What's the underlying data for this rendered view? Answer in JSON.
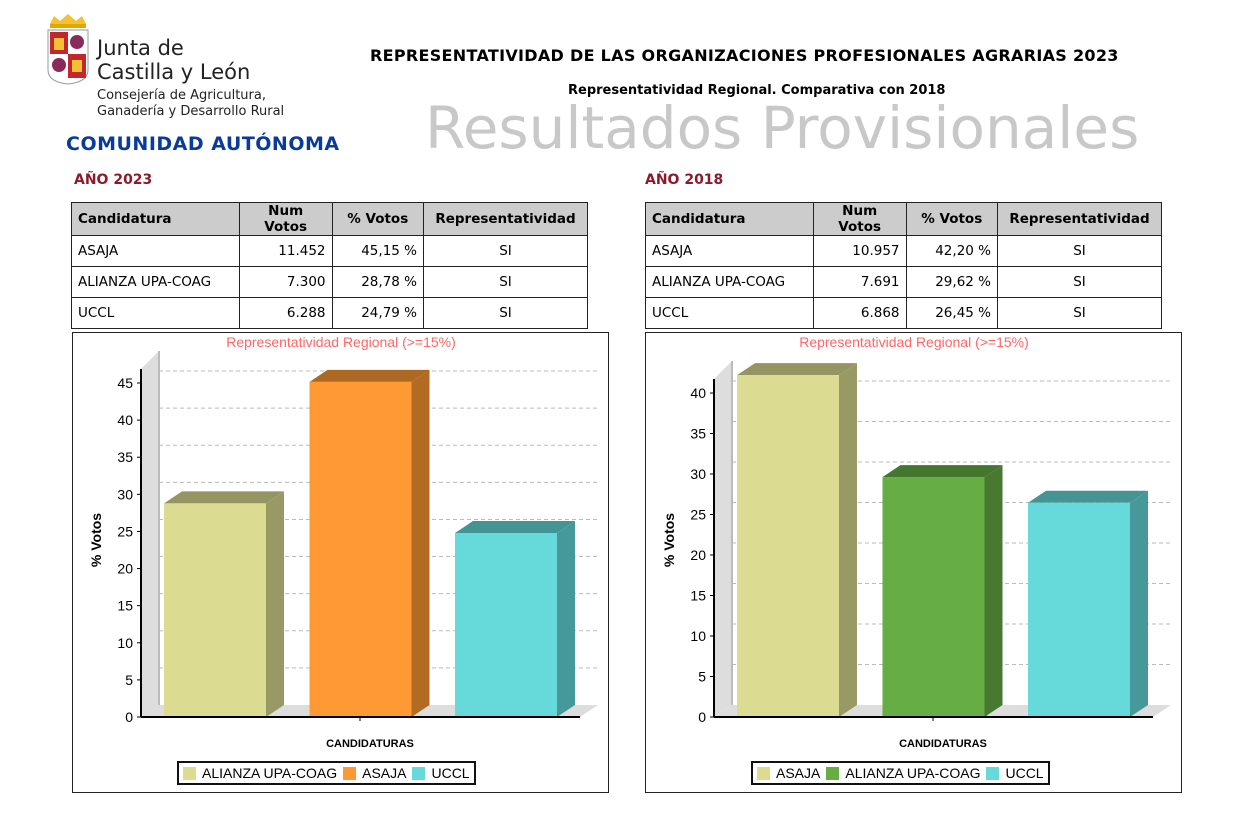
{
  "header": {
    "logo_title_line1": "Junta de",
    "logo_title_line2": "Castilla y León",
    "logo_sub_line1": "Consejería de Agricultura,",
    "logo_sub_line2": "Ganadería y Desarrollo Rural",
    "title": "REPRESENTATIVIDAD DE LAS ORGANIZACIONES PROFESIONALES AGRARIAS 2023",
    "subtitle": "Representatividad Regional. Comparativa con 2018",
    "watermark": "Resultados Provisionales",
    "region": "COMUNIDAD AUTÓNOMA"
  },
  "tables": [
    {
      "year_label": "AÑO 2023",
      "headers": [
        "Candidatura",
        "Num Votos",
        "% Votos",
        "Representatividad"
      ],
      "rows": [
        [
          "ASAJA",
          "11.452",
          "45,15 %",
          "SI"
        ],
        [
          "ALIANZA UPA-COAG",
          "7.300",
          "28,78 %",
          "SI"
        ],
        [
          "UCCL",
          "6.288",
          "24,79 %",
          "SI"
        ]
      ]
    },
    {
      "year_label": "AÑO 2018",
      "headers": [
        "Candidatura",
        "Num Votos",
        "% Votos",
        "Representatividad"
      ],
      "rows": [
        [
          "ASAJA",
          "10.957",
          "42,20 %",
          "SI"
        ],
        [
          "ALIANZA UPA-COAG",
          "7.691",
          "29,62 %",
          "SI"
        ],
        [
          "UCCL",
          "6.868",
          "26,45 %",
          "SI"
        ]
      ]
    }
  ],
  "chart_data": [
    {
      "type": "bar",
      "title": "Representatividad Regional (>=15%)",
      "xlabel": "CANDIDATURAS",
      "ylabel": "% Votos",
      "categories": [
        "ALIANZA UPA-COAG",
        "ASAJA",
        "UCCL"
      ],
      "values": [
        28.78,
        45.15,
        24.79
      ],
      "colors": [
        "#dbdb91",
        "#ff9933",
        "#66dada"
      ],
      "ylim": [
        0,
        45
      ],
      "yticks": [
        0,
        5,
        10,
        15,
        20,
        25,
        30,
        35,
        40,
        45
      ],
      "grid": true,
      "legend": "bottom",
      "three_d": true
    },
    {
      "type": "bar",
      "title": "Representatividad Regional (>=15%)",
      "xlabel": "CANDIDATURAS",
      "ylabel": "% Votos",
      "categories": [
        "ASAJA",
        "ALIANZA UPA-COAG",
        "UCCL"
      ],
      "values": [
        42.2,
        29.62,
        26.45
      ],
      "colors": [
        "#dbdb91",
        "#66ad44",
        "#66dada"
      ],
      "ylim": [
        0,
        40
      ],
      "yticks": [
        0,
        5,
        10,
        15,
        20,
        25,
        30,
        35,
        40
      ],
      "grid": true,
      "legend": "bottom",
      "three_d": true
    }
  ]
}
